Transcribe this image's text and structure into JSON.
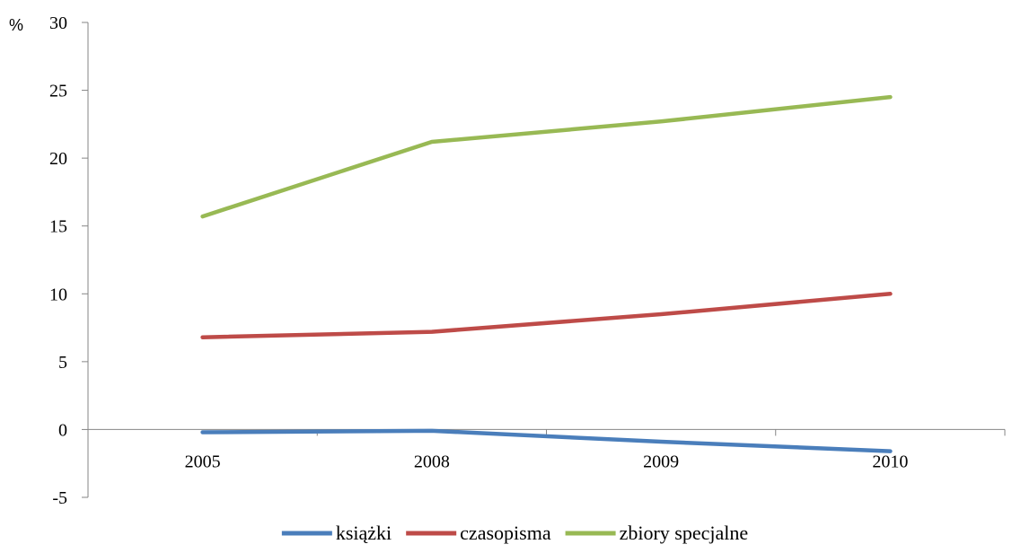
{
  "chart_data": {
    "type": "line",
    "title": "",
    "xlabel": "",
    "ylabel": "%",
    "categories": [
      "2005",
      "2008",
      "2009",
      "2010"
    ],
    "ylim": [
      -5,
      30
    ],
    "yticks": [
      -5,
      0,
      5,
      10,
      15,
      20,
      25,
      30
    ],
    "grid": false,
    "legend_position": "bottom",
    "series": [
      {
        "name": "książki",
        "color": "#4a7ebb",
        "values": [
          -0.2,
          -0.1,
          -0.9,
          -1.6
        ]
      },
      {
        "name": "czasopisma",
        "color": "#be4b48",
        "values": [
          6.8,
          7.2,
          8.5,
          10.0
        ]
      },
      {
        "name": "zbiory specjalne",
        "color": "#98b954",
        "values": [
          15.7,
          21.2,
          22.7,
          24.5
        ]
      }
    ]
  }
}
